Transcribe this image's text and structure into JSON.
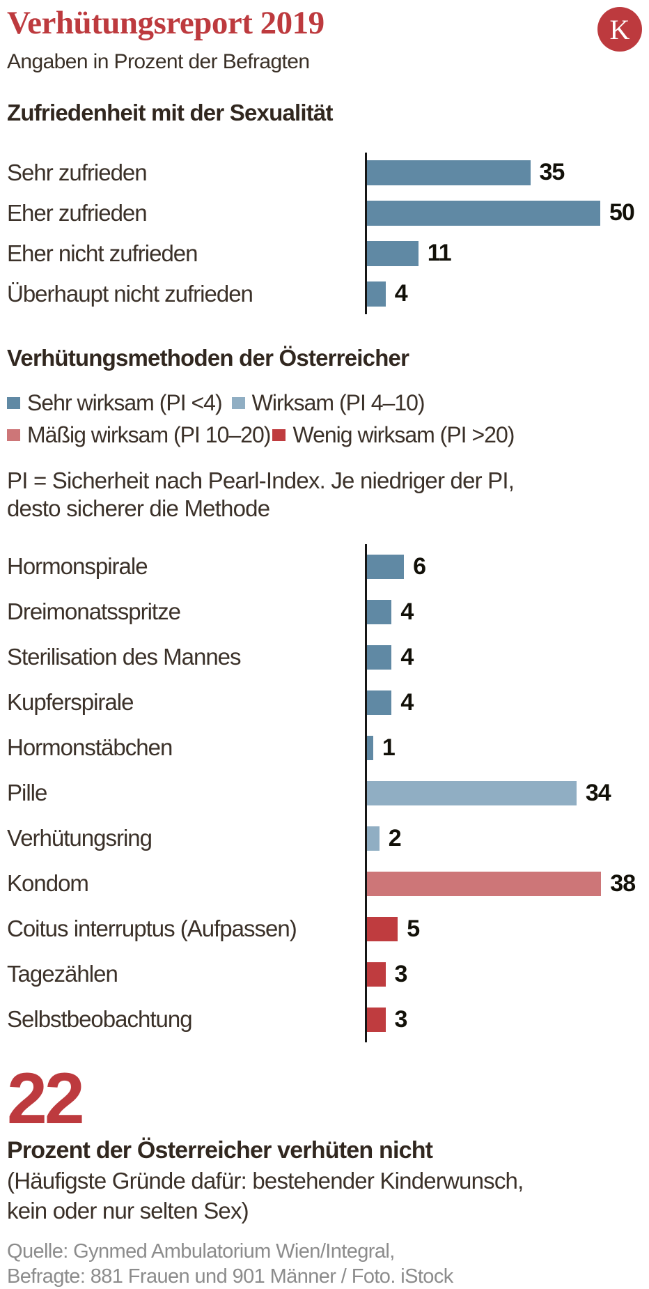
{
  "header": {
    "title": "Verhütungsreport 2019",
    "subtitle": "Angaben in Prozent der Befragten",
    "logo_letter": "K"
  },
  "colors": {
    "accent_red": "#bd3a3e",
    "sehr_wirksam": "#6089a4",
    "wirksam": "#90aec3",
    "maessig_wirksam": "#cd7678",
    "wenig_wirksam": "#bf3c3f",
    "satisfaction_bar": "#6089a4",
    "text_dark": "#362c24",
    "source_gray": "#8c8c8c"
  },
  "section1": {
    "heading": "Zufriedenheit mit der Sexualität",
    "rows": [
      {
        "label": "Sehr zufrieden",
        "value": 35
      },
      {
        "label": "Eher zufrieden",
        "value": 50
      },
      {
        "label": "Eher nicht zufrieden",
        "value": 11
      },
      {
        "label": "Überhaupt nicht zufrieden",
        "value": 4
      }
    ]
  },
  "section2": {
    "heading": "Verhütungsmethoden der Österreicher",
    "legend": [
      {
        "label": "Sehr wirksam (PI <4)",
        "category": "sehr_wirksam"
      },
      {
        "label": "Wirksam (PI 4–10)",
        "category": "wirksam"
      },
      {
        "label": "Mäßig wirksam (PI 10–20)",
        "category": "maessig_wirksam"
      },
      {
        "label": "Wenig wirksam (PI >20)",
        "category": "wenig_wirksam"
      }
    ],
    "note_line1": "PI = Sicherheit nach Pearl-Index. Je niedriger der PI,",
    "note_line2": "desto sicherer die Methode",
    "rows": [
      {
        "label": "Hormonspirale",
        "value": 6,
        "category": "sehr_wirksam"
      },
      {
        "label": "Dreimonatsspritze",
        "value": 4,
        "category": "sehr_wirksam"
      },
      {
        "label": "Sterilisation des Mannes",
        "value": 4,
        "category": "sehr_wirksam"
      },
      {
        "label": "Kupferspirale",
        "value": 4,
        "category": "sehr_wirksam"
      },
      {
        "label": "Hormonstäbchen",
        "value": 1,
        "category": "sehr_wirksam"
      },
      {
        "label": "Pille",
        "value": 34,
        "category": "wirksam"
      },
      {
        "label": "Verhütungsring",
        "value": 2,
        "category": "wirksam"
      },
      {
        "label": "Kondom",
        "value": 38,
        "category": "maessig_wirksam"
      },
      {
        "label": "Coitus interruptus (Aufpassen)",
        "value": 5,
        "category": "wenig_wirksam"
      },
      {
        "label": "Tagezählen",
        "value": 3,
        "category": "wenig_wirksam"
      },
      {
        "label": "Selbstbeobachtung",
        "value": 3,
        "category": "wenig_wirksam"
      }
    ]
  },
  "stat": {
    "number": "22",
    "bold_line": "Prozent der Österreicher verhüten nicht",
    "detail_line1": "(Häufigste Gründe dafür: bestehender Kinderwunsch,",
    "detail_line2": "kein oder nur selten Sex)"
  },
  "source": {
    "line1": "Quelle: Gynmed Ambulatorium Wien/Integral,",
    "line2": "Befragte: 881 Frauen und 901 Männer / Foto. iStock"
  },
  "chart_data": [
    {
      "type": "bar",
      "orientation": "horizontal",
      "title": "Zufriedenheit mit der Sexualität",
      "categories": [
        "Sehr zufrieden",
        "Eher zufrieden",
        "Eher nicht zufrieden",
        "Überhaupt nicht zufrieden"
      ],
      "values": [
        35,
        50,
        11,
        4
      ],
      "unit": "% der Befragten",
      "xlim": [
        0,
        50
      ],
      "value_labels": true,
      "grid": false,
      "bar_color": "#6089a4"
    },
    {
      "type": "bar",
      "orientation": "horizontal",
      "title": "Verhütungsmethoden der Österreicher",
      "categories": [
        "Hormonspirale",
        "Dreimonatsspritze",
        "Sterilisation des Mannes",
        "Kupferspirale",
        "Hormonstäbchen",
        "Pille",
        "Verhütungsring",
        "Kondom",
        "Coitus interruptus (Aufpassen)",
        "Tagezählen",
        "Selbstbeobachtung"
      ],
      "values": [
        6,
        4,
        4,
        4,
        1,
        34,
        2,
        38,
        5,
        3,
        3
      ],
      "groups": [
        "Sehr wirksam (PI <4)",
        "Sehr wirksam (PI <4)",
        "Sehr wirksam (PI <4)",
        "Sehr wirksam (PI <4)",
        "Sehr wirksam (PI <4)",
        "Wirksam (PI 4–10)",
        "Wirksam (PI 4–10)",
        "Mäßig wirksam (PI 10–20)",
        "Wenig wirksam (PI >20)",
        "Wenig wirksam (PI >20)",
        "Wenig wirksam (PI >20)"
      ],
      "group_colors": {
        "Sehr wirksam (PI <4)": "#6089a4",
        "Wirksam (PI 4–10)": "#90aec3",
        "Mäßig wirksam (PI 10–20)": "#cd7678",
        "Wenig wirksam (PI >20)": "#bf3c3f"
      },
      "unit": "% der Befragten",
      "xlim": [
        0,
        38
      ],
      "value_labels": true,
      "grid": false,
      "legend_position": "top",
      "note": "PI = Sicherheit nach Pearl-Index. Je niedriger der PI, desto sicherer die Methode"
    }
  ]
}
